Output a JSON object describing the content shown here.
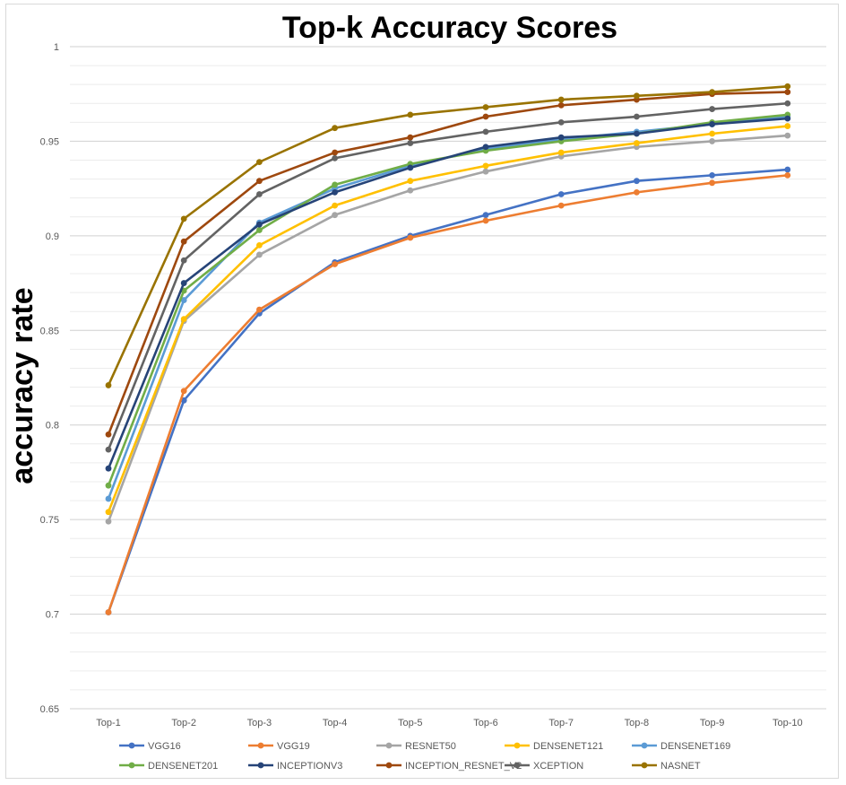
{
  "chart_data": {
    "type": "line",
    "title": "Top-k Accuracy Scores",
    "xlabel": "",
    "ylabel": "accuracy rate",
    "categories": [
      "Top-1",
      "Top-2",
      "Top-3",
      "Top-4",
      "Top-5",
      "Top-6",
      "Top-7",
      "Top-8",
      "Top-9",
      "Top-10"
    ],
    "ylim": [
      0.65,
      1
    ],
    "yticks": [
      "0.65",
      "0.7",
      "0.75",
      "0.8",
      "0.85",
      "0.9",
      "0.95",
      "1"
    ],
    "grid": true,
    "legend_position": "bottom",
    "series": [
      {
        "name": "VGG16",
        "color": "#4472c4",
        "values": [
          0.701,
          0.813,
          0.859,
          0.886,
          0.9,
          0.911,
          0.922,
          0.929,
          0.932,
          0.935
        ]
      },
      {
        "name": "VGG19",
        "color": "#ed7d31",
        "values": [
          0.701,
          0.818,
          0.861,
          0.885,
          0.899,
          0.908,
          0.916,
          0.923,
          0.928,
          0.932
        ]
      },
      {
        "name": "RESNET50",
        "color": "#a5a5a5",
        "values": [
          0.749,
          0.855,
          0.89,
          0.911,
          0.924,
          0.934,
          0.942,
          0.947,
          0.95,
          0.953
        ]
      },
      {
        "name": "DENSENET121",
        "color": "#ffc000",
        "values": [
          0.754,
          0.856,
          0.895,
          0.916,
          0.929,
          0.937,
          0.944,
          0.949,
          0.954,
          0.958
        ]
      },
      {
        "name": "DENSENET169",
        "color": "#5b9bd5",
        "values": [
          0.761,
          0.866,
          0.907,
          0.925,
          0.937,
          0.946,
          0.951,
          0.955,
          0.959,
          0.963
        ]
      },
      {
        "name": "DENSENET201",
        "color": "#70ad47",
        "values": [
          0.768,
          0.871,
          0.903,
          0.927,
          0.938,
          0.945,
          0.95,
          0.954,
          0.96,
          0.964
        ]
      },
      {
        "name": "INCEPTIONV3",
        "color": "#264478",
        "values": [
          0.777,
          0.875,
          0.906,
          0.923,
          0.936,
          0.947,
          0.952,
          0.954,
          0.959,
          0.962
        ]
      },
      {
        "name": "INCEPTION_RESNET_V2",
        "color": "#9e480e",
        "values": [
          0.795,
          0.897,
          0.929,
          0.944,
          0.952,
          0.963,
          0.969,
          0.972,
          0.975,
          0.976
        ]
      },
      {
        "name": "XCEPTION",
        "color": "#636363",
        "values": [
          0.787,
          0.887,
          0.922,
          0.941,
          0.949,
          0.955,
          0.96,
          0.963,
          0.967,
          0.97
        ]
      },
      {
        "name": "NASNET",
        "color": "#997300",
        "values": [
          0.821,
          0.909,
          0.939,
          0.957,
          0.964,
          0.968,
          0.972,
          0.974,
          0.976,
          0.979
        ]
      }
    ]
  }
}
